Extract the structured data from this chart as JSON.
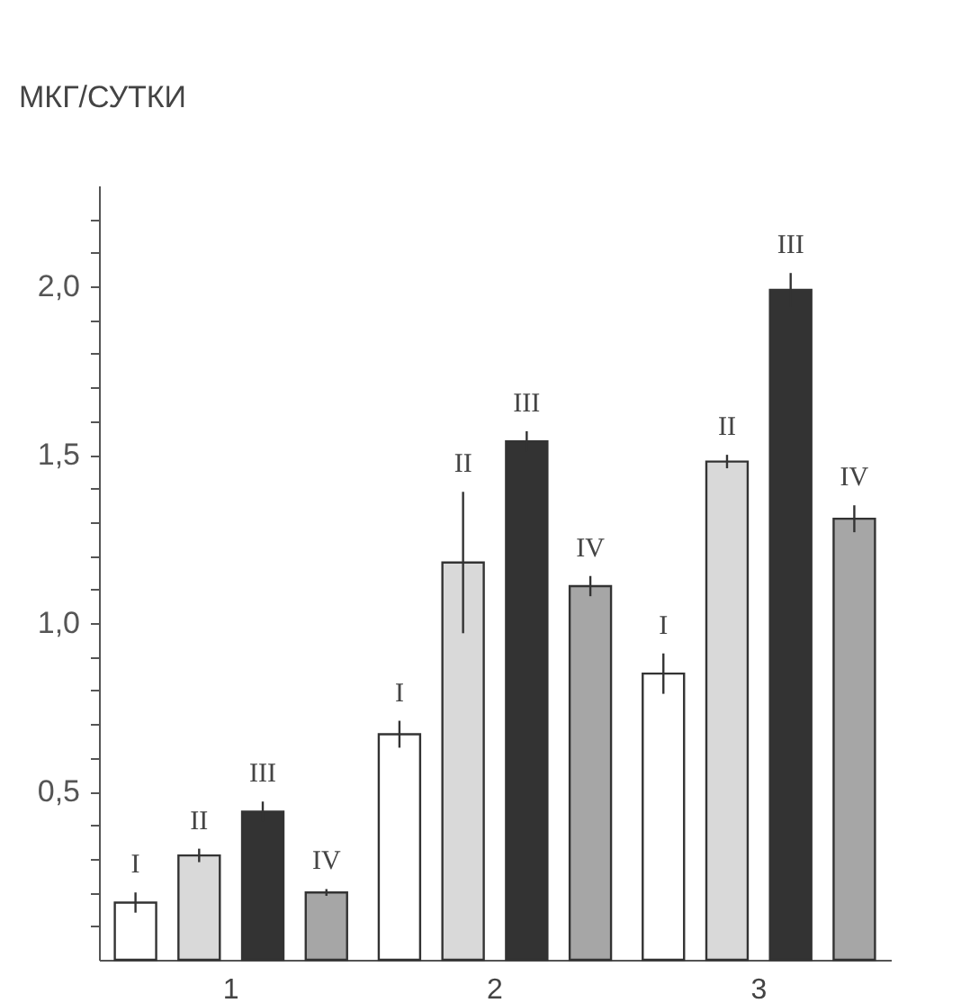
{
  "chart_data": {
    "type": "bar",
    "ylabel": "МКГ/СУТКИ",
    "categories": [
      "1",
      "2",
      "3"
    ],
    "series": [
      {
        "name": "I",
        "color": "#ffffff",
        "values": [
          0.17,
          0.67,
          0.85
        ],
        "errors": [
          0.03,
          0.04,
          0.06
        ]
      },
      {
        "name": "II",
        "color": "#d9d9d9",
        "values": [
          0.31,
          1.18,
          1.48
        ],
        "errors": [
          0.02,
          0.21,
          0.02
        ]
      },
      {
        "name": "III",
        "color": "#333333",
        "values": [
          0.44,
          1.54,
          1.99
        ],
        "errors": [
          0.03,
          0.03,
          0.05
        ]
      },
      {
        "name": "IV",
        "color": "#a6a6a6",
        "values": [
          0.2,
          1.11,
          1.31
        ],
        "errors": [
          0.01,
          0.03,
          0.04
        ]
      }
    ],
    "ylim": [
      0,
      2.3
    ],
    "yticks": [
      {
        "value": 0.1,
        "label": null
      },
      {
        "value": 0.2,
        "label": null
      },
      {
        "value": 0.3,
        "label": null
      },
      {
        "value": 0.4,
        "label": null
      },
      {
        "value": 0.5,
        "label": "0,5"
      },
      {
        "value": 0.6,
        "label": null
      },
      {
        "value": 0.7,
        "label": null
      },
      {
        "value": 0.8,
        "label": null
      },
      {
        "value": 0.9,
        "label": null
      },
      {
        "value": 1.0,
        "label": "1,0"
      },
      {
        "value": 1.1,
        "label": null
      },
      {
        "value": 1.2,
        "label": null
      },
      {
        "value": 1.3,
        "label": null
      },
      {
        "value": 1.4,
        "label": null
      },
      {
        "value": 1.5,
        "label": "1,5"
      },
      {
        "value": 1.6,
        "label": null
      },
      {
        "value": 1.7,
        "label": null
      },
      {
        "value": 1.8,
        "label": null
      },
      {
        "value": 1.9,
        "label": null
      },
      {
        "value": 2.0,
        "label": "2,0"
      },
      {
        "value": 2.1,
        "label": null
      },
      {
        "value": 2.2,
        "label": null
      }
    ],
    "grid": false,
    "legend": false
  }
}
